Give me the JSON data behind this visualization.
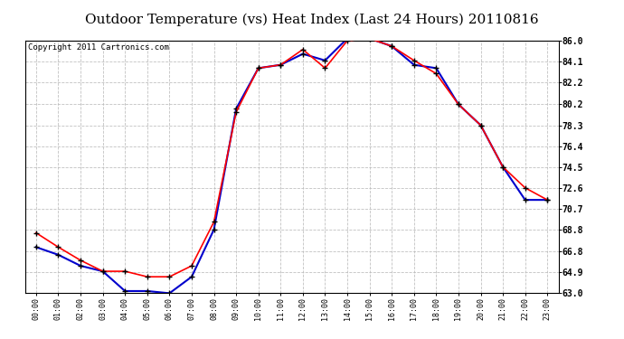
{
  "title": "Outdoor Temperature (vs) Heat Index (Last 24 Hours) 20110816",
  "copyright": "Copyright 2011 Cartronics.com",
  "x_labels": [
    "00:00",
    "01:00",
    "02:00",
    "03:00",
    "04:00",
    "05:00",
    "06:00",
    "07:00",
    "08:00",
    "09:00",
    "10:00",
    "11:00",
    "12:00",
    "13:00",
    "14:00",
    "15:00",
    "16:00",
    "17:00",
    "18:00",
    "19:00",
    "20:00",
    "21:00",
    "22:00",
    "23:00"
  ],
  "temp_data": [
    68.5,
    67.2,
    66.0,
    65.0,
    65.0,
    64.5,
    64.5,
    65.5,
    69.5,
    79.5,
    83.5,
    83.8,
    85.2,
    83.5,
    86.0,
    86.2,
    85.5,
    84.2,
    83.0,
    80.2,
    78.3,
    74.5,
    72.6,
    71.5
  ],
  "heat_data": [
    67.2,
    66.5,
    65.5,
    65.0,
    63.2,
    63.2,
    63.0,
    64.5,
    68.8,
    79.8,
    83.5,
    83.8,
    84.8,
    84.2,
    86.2,
    86.2,
    85.5,
    83.8,
    83.5,
    80.2,
    78.3,
    74.5,
    71.5,
    71.5
  ],
  "temp_color": "#FF0000",
  "heat_color": "#0000CC",
  "ylim_min": 63.0,
  "ylim_max": 86.0,
  "yticks": [
    63.0,
    64.9,
    66.8,
    68.8,
    70.7,
    72.6,
    74.5,
    76.4,
    78.3,
    80.2,
    82.2,
    84.1,
    86.0
  ],
  "bg_color": "#FFFFFF",
  "plot_bg": "#FFFFFF",
  "grid_color": "#BBBBBB",
  "title_fontsize": 11,
  "copyright_fontsize": 6.5
}
